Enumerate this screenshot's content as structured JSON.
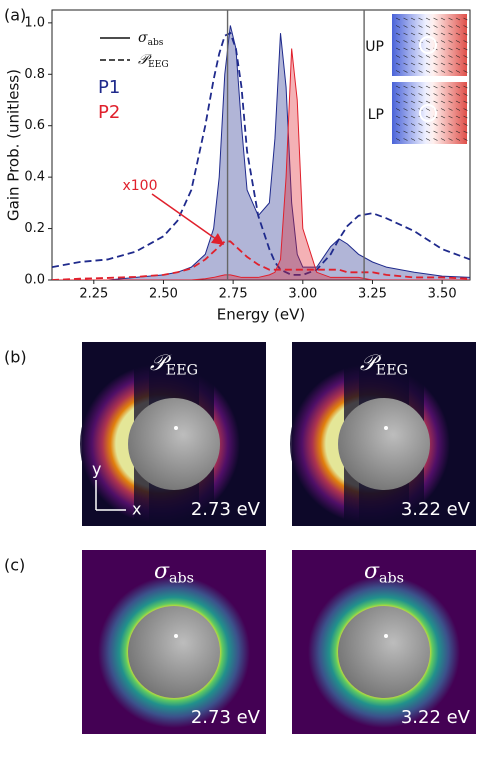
{
  "chart_data": {
    "type": "line",
    "panel_label": "(a)",
    "xlabel": "Energy (eV)",
    "ylabel": "Gain Prob. (unitless)",
    "xlim": [
      2.1,
      3.6
    ],
    "ylim": [
      0,
      1.05
    ],
    "xticks": [
      2.25,
      {
        "value": 2.5,
        "label": "2.50"
      },
      2.75,
      {
        "value": 3,
        "label": "3.00"
      },
      3.25,
      {
        "value": 3.5,
        "label": "3.50"
      }
    ],
    "yticks": [
      {
        "value": 0,
        "label": "0.0"
      },
      0.2,
      0.4,
      0.6,
      0.8,
      {
        "value": 1,
        "label": "1.0"
      }
    ],
    "vlines": [
      2.73,
      3.22
    ],
    "x": [
      2.1,
      2.2,
      2.3,
      2.4,
      2.5,
      2.55,
      2.6,
      2.65,
      2.68,
      2.7,
      2.72,
      2.74,
      2.76,
      2.78,
      2.8,
      2.84,
      2.88,
      2.9,
      2.92,
      2.94,
      2.96,
      2.98,
      3.0,
      3.05,
      3.1,
      3.13,
      3.16,
      3.2,
      3.25,
      3.3,
      3.4,
      3.5,
      3.6
    ],
    "series": [
      {
        "name": "P1",
        "color": "#1f2a8c",
        "abs": [
          0,
          0,
          0,
          0.01,
          0.02,
          0.03,
          0.05,
          0.1,
          0.2,
          0.4,
          0.8,
          0.99,
          0.9,
          0.6,
          0.35,
          0.25,
          0.3,
          0.55,
          0.96,
          0.75,
          0.3,
          0.1,
          0.05,
          0.05,
          0.13,
          0.16,
          0.14,
          0.1,
          0.07,
          0.05,
          0.03,
          0.015,
          0.01
        ],
        "eeg": [
          0.05,
          0.07,
          0.08,
          0.11,
          0.17,
          0.23,
          0.35,
          0.6,
          0.78,
          0.88,
          0.95,
          0.96,
          0.9,
          0.75,
          0.5,
          0.25,
          0.12,
          0.07,
          0.04,
          0.03,
          0.02,
          0.02,
          0.02,
          0.04,
          0.1,
          0.16,
          0.21,
          0.25,
          0.26,
          0.24,
          0.19,
          0.12,
          0.08
        ]
      },
      {
        "name": "P2",
        "color": "#e0202c",
        "abs": [
          0,
          0,
          0,
          0,
          0,
          0,
          0,
          0.005,
          0.01,
          0.015,
          0.02,
          0.02,
          0.015,
          0.01,
          0.01,
          0.01,
          0.02,
          0.03,
          0.08,
          0.4,
          0.9,
          0.7,
          0.2,
          0.03,
          0.01,
          0.01,
          0.01,
          0.01,
          0,
          0,
          0,
          0,
          0
        ],
        "eeg": [
          0,
          0.005,
          0.008,
          0.012,
          0.02,
          0.03,
          0.045,
          0.08,
          0.11,
          0.13,
          0.15,
          0.15,
          0.13,
          0.11,
          0.09,
          0.06,
          0.04,
          0.04,
          0.04,
          0.04,
          0.04,
          0.04,
          0.04,
          0.04,
          0.04,
          0.04,
          0.03,
          0.03,
          0.03,
          0.02,
          0.01,
          0.01,
          0.005
        ],
        "eeg_annotation": "x100"
      }
    ],
    "legend": [
      {
        "symbol": "σ",
        "subscript": "abs"
      },
      {
        "symbol": "𝒫",
        "subscript": "EEG"
      }
    ],
    "insets": [
      "UP",
      "LP"
    ]
  },
  "panels": [
    {
      "label": "(b)",
      "kind": "eeg",
      "maps": [
        {
          "symbol": "𝒫",
          "subscript": "EEG",
          "energy": "2.73 eV"
        },
        {
          "symbol": "𝒫",
          "subscript": "EEG",
          "energy": "3.22 eV"
        }
      ],
      "axes": [
        "y",
        "x"
      ]
    },
    {
      "label": "(c)",
      "kind": "abs",
      "maps": [
        {
          "symbol": "σ",
          "subscript": "abs",
          "energy": "2.73 eV"
        },
        {
          "symbol": "σ",
          "subscript": "abs",
          "energy": "3.22 eV"
        }
      ]
    }
  ]
}
